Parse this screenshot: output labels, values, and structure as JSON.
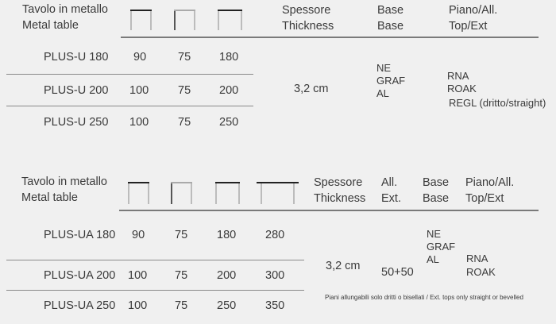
{
  "table1": {
    "title_it": "Tavolo in metallo",
    "title_en": "Metal table",
    "icons": [
      "table-width-icon",
      "table-height-icon",
      "table-length-icon"
    ],
    "headers": {
      "thickness_it": "Spessore",
      "thickness_en": "Thickness",
      "base_it": "Base",
      "base_en": "Base",
      "top_it": "Piano/All.",
      "top_en": "Top/Ext"
    },
    "rows": [
      {
        "model": "PLUS-U 180",
        "w": "90",
        "h": "75",
        "l": "180"
      },
      {
        "model": "PLUS-U 200",
        "w": "100",
        "h": "75",
        "l": "200"
      },
      {
        "model": "PLUS-U 250",
        "w": "100",
        "h": "75",
        "l": "250"
      }
    ],
    "thickness": "3,2 cm",
    "bases": [
      "NE",
      "GRAF",
      "AL"
    ],
    "tops": [
      "RNA",
      "ROAK",
      "REGL (dritto/straight)"
    ]
  },
  "table2": {
    "title_it": "Tavolo in metallo",
    "title_en": "Metal table",
    "icons": [
      "table-width-icon",
      "table-height-icon",
      "table-length-icon",
      "table-extended-length-icon"
    ],
    "headers": {
      "thickness_it": "Spessore",
      "thickness_en": "Thickness",
      "ext_it": "All.",
      "ext_en": "Ext.",
      "base_it": "Base",
      "base_en": "Base",
      "top_it": "Piano/All.",
      "top_en": "Top/Ext"
    },
    "rows": [
      {
        "model": "PLUS-UA 180",
        "w": "90",
        "h": "75",
        "l": "180",
        "ext": "280"
      },
      {
        "model": "PLUS-UA 200",
        "w": "100",
        "h": "75",
        "l": "200",
        "ext": "300"
      },
      {
        "model": "PLUS-UA 250",
        "w": "100",
        "h": "75",
        "l": "250",
        "ext": "350"
      }
    ],
    "thickness": "3,2 cm",
    "extension": "50+50",
    "bases": [
      "NE",
      "GRAF",
      "AL"
    ],
    "tops": [
      "RNA",
      "ROAK"
    ],
    "footnote": "Piani allungabili solo dritti o bisellati / Ext. tops only straight or bevelled"
  }
}
